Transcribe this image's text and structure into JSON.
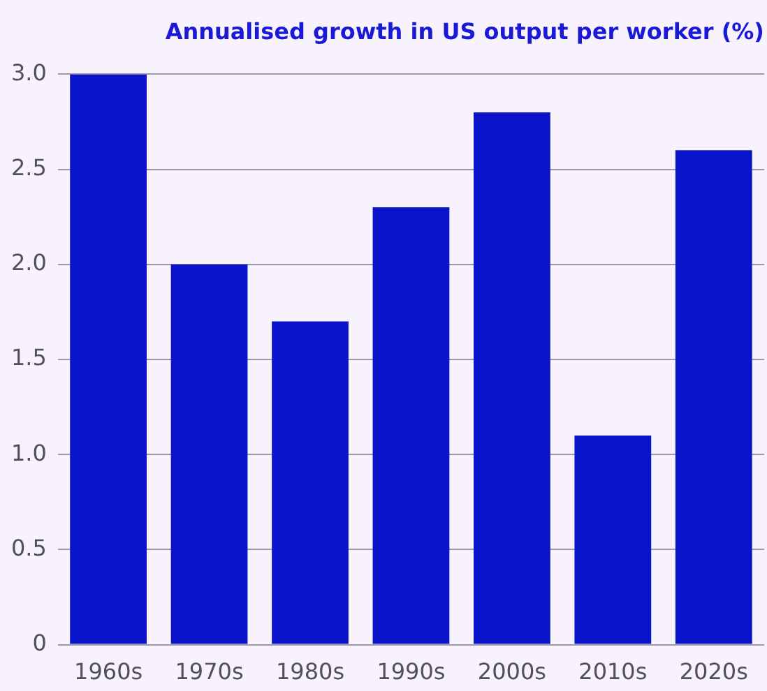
{
  "chart_data": {
    "type": "bar",
    "title": "Annualised growth in US output per worker (%)",
    "categories": [
      "1960s",
      "1970s",
      "1980s",
      "1990s",
      "2000s",
      "2010s",
      "2020s"
    ],
    "values": [
      3.0,
      2.0,
      1.7,
      2.3,
      2.8,
      1.1,
      2.6
    ],
    "color": "#0a14c8",
    "ylim": [
      0,
      3
    ],
    "yticks": [
      0,
      0.5,
      {
        "value": 1,
        "label": "1.0"
      },
      1.5,
      {
        "value": 2,
        "label": "2.0"
      },
      2.5,
      {
        "value": 3,
        "label": "3.0"
      }
    ],
    "grid": "y"
  }
}
